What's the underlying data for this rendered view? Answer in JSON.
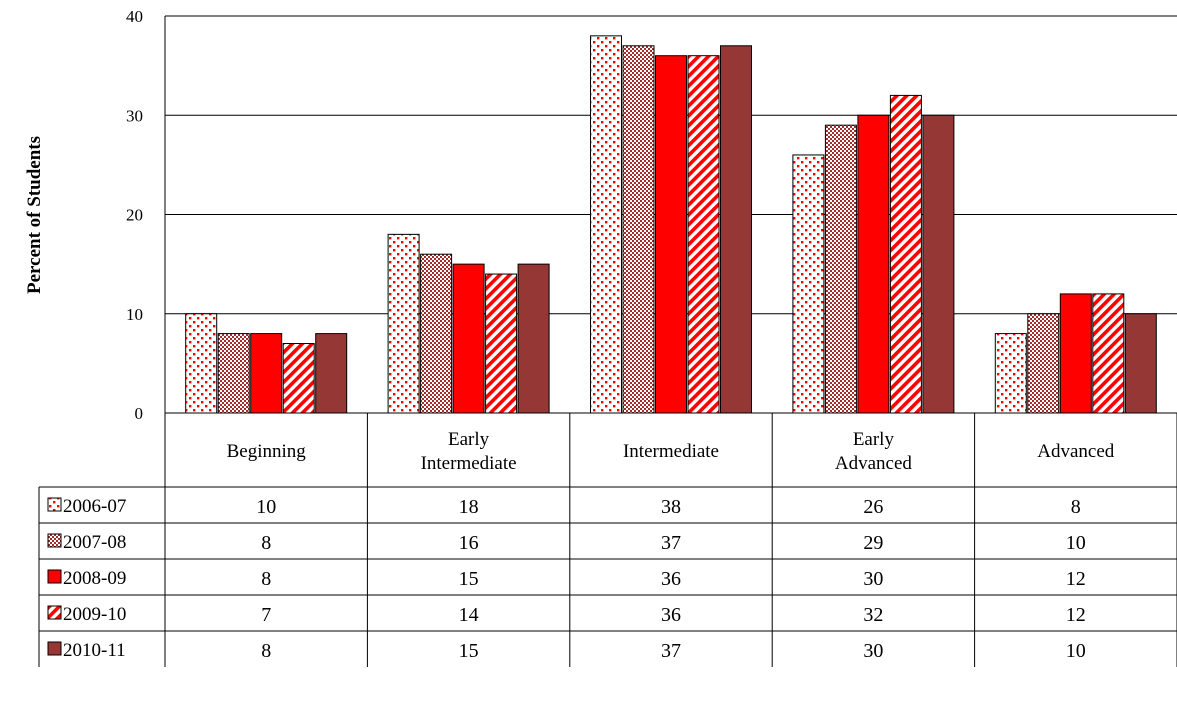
{
  "chart_data": {
    "type": "bar",
    "ylabel": "Percent of Students",
    "ylim": [
      0,
      40
    ],
    "yticks": [
      "0",
      "10",
      "20",
      "30",
      "40"
    ],
    "categories": [
      [
        "Beginning"
      ],
      [
        "Early",
        "Intermediate"
      ],
      [
        "Intermediate"
      ],
      [
        "Early",
        "Advanced"
      ],
      [
        "Advanced"
      ]
    ],
    "series": [
      {
        "name": "2006-07",
        "values": [
          10,
          18,
          38,
          26,
          8
        ],
        "pattern": "dots",
        "color": "#ff0000"
      },
      {
        "name": "2007-08",
        "values": [
          8,
          16,
          37,
          29,
          10
        ],
        "pattern": "checker",
        "color": "#b03030"
      },
      {
        "name": "2008-09",
        "values": [
          8,
          15,
          36,
          30,
          12
        ],
        "pattern": "solid",
        "color": "#ff0000"
      },
      {
        "name": "2009-10",
        "values": [
          7,
          14,
          36,
          32,
          12
        ],
        "pattern": "diagonal",
        "color": "#ff0000"
      },
      {
        "name": "2010-11",
        "values": [
          8,
          15,
          37,
          30,
          10
        ],
        "pattern": "solid",
        "color": "#953735"
      }
    ],
    "grid": true,
    "data_table": true,
    "legend": "in data table"
  }
}
